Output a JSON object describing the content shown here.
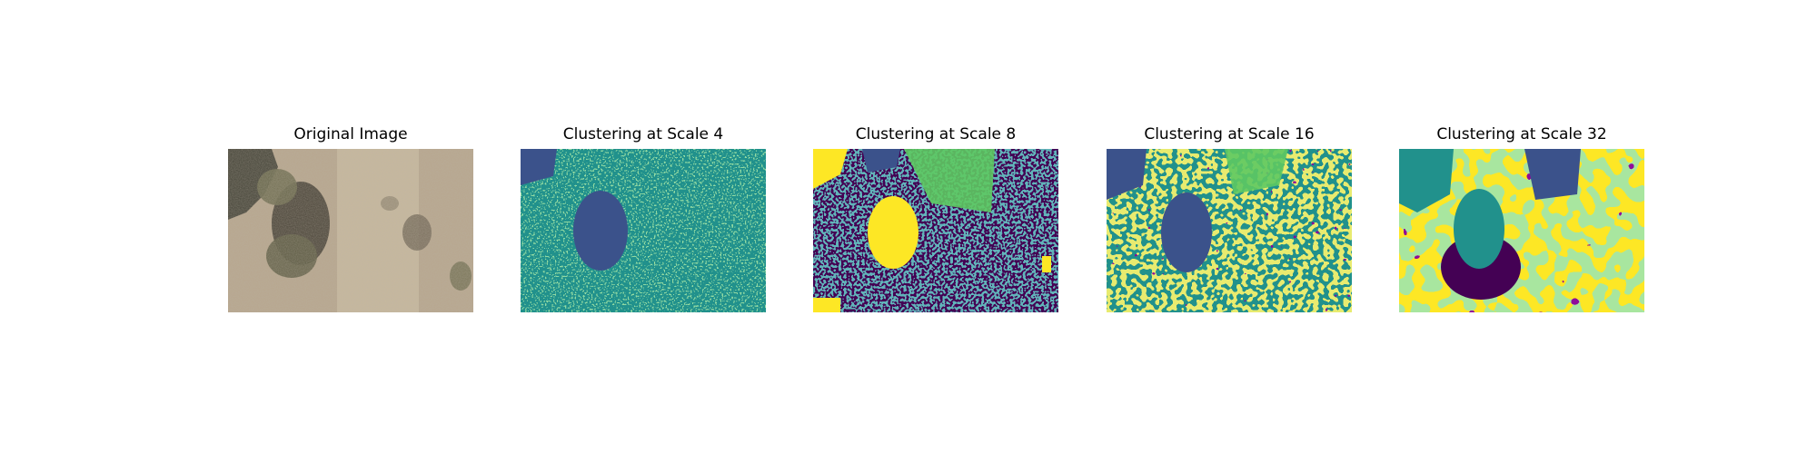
{
  "figure": {
    "panels": [
      {
        "id": "original",
        "title": "Original Image",
        "kind": "photo"
      },
      {
        "id": "scale-4",
        "title": "Clustering at Scale 4",
        "kind": "cluster-map",
        "scale": 4
      },
      {
        "id": "scale-8",
        "title": "Clustering at Scale 8",
        "kind": "cluster-map",
        "scale": 8
      },
      {
        "id": "scale-16",
        "title": "Clustering at Scale 16",
        "kind": "cluster-map",
        "scale": 16
      },
      {
        "id": "scale-32",
        "title": "Clustering at Scale 32",
        "kind": "cluster-map",
        "scale": 32
      }
    ],
    "cluster_colors": [
      "#440154",
      "#3b528b",
      "#21918c",
      "#5ec962",
      "#fde725"
    ],
    "photo_colors": {
      "ground": "#b7a68d",
      "ground_light": "#d6c7ab",
      "shadow": "#4a4438",
      "vegetation": "#6b6a4c",
      "dark_bush": "#2f3027"
    }
  }
}
